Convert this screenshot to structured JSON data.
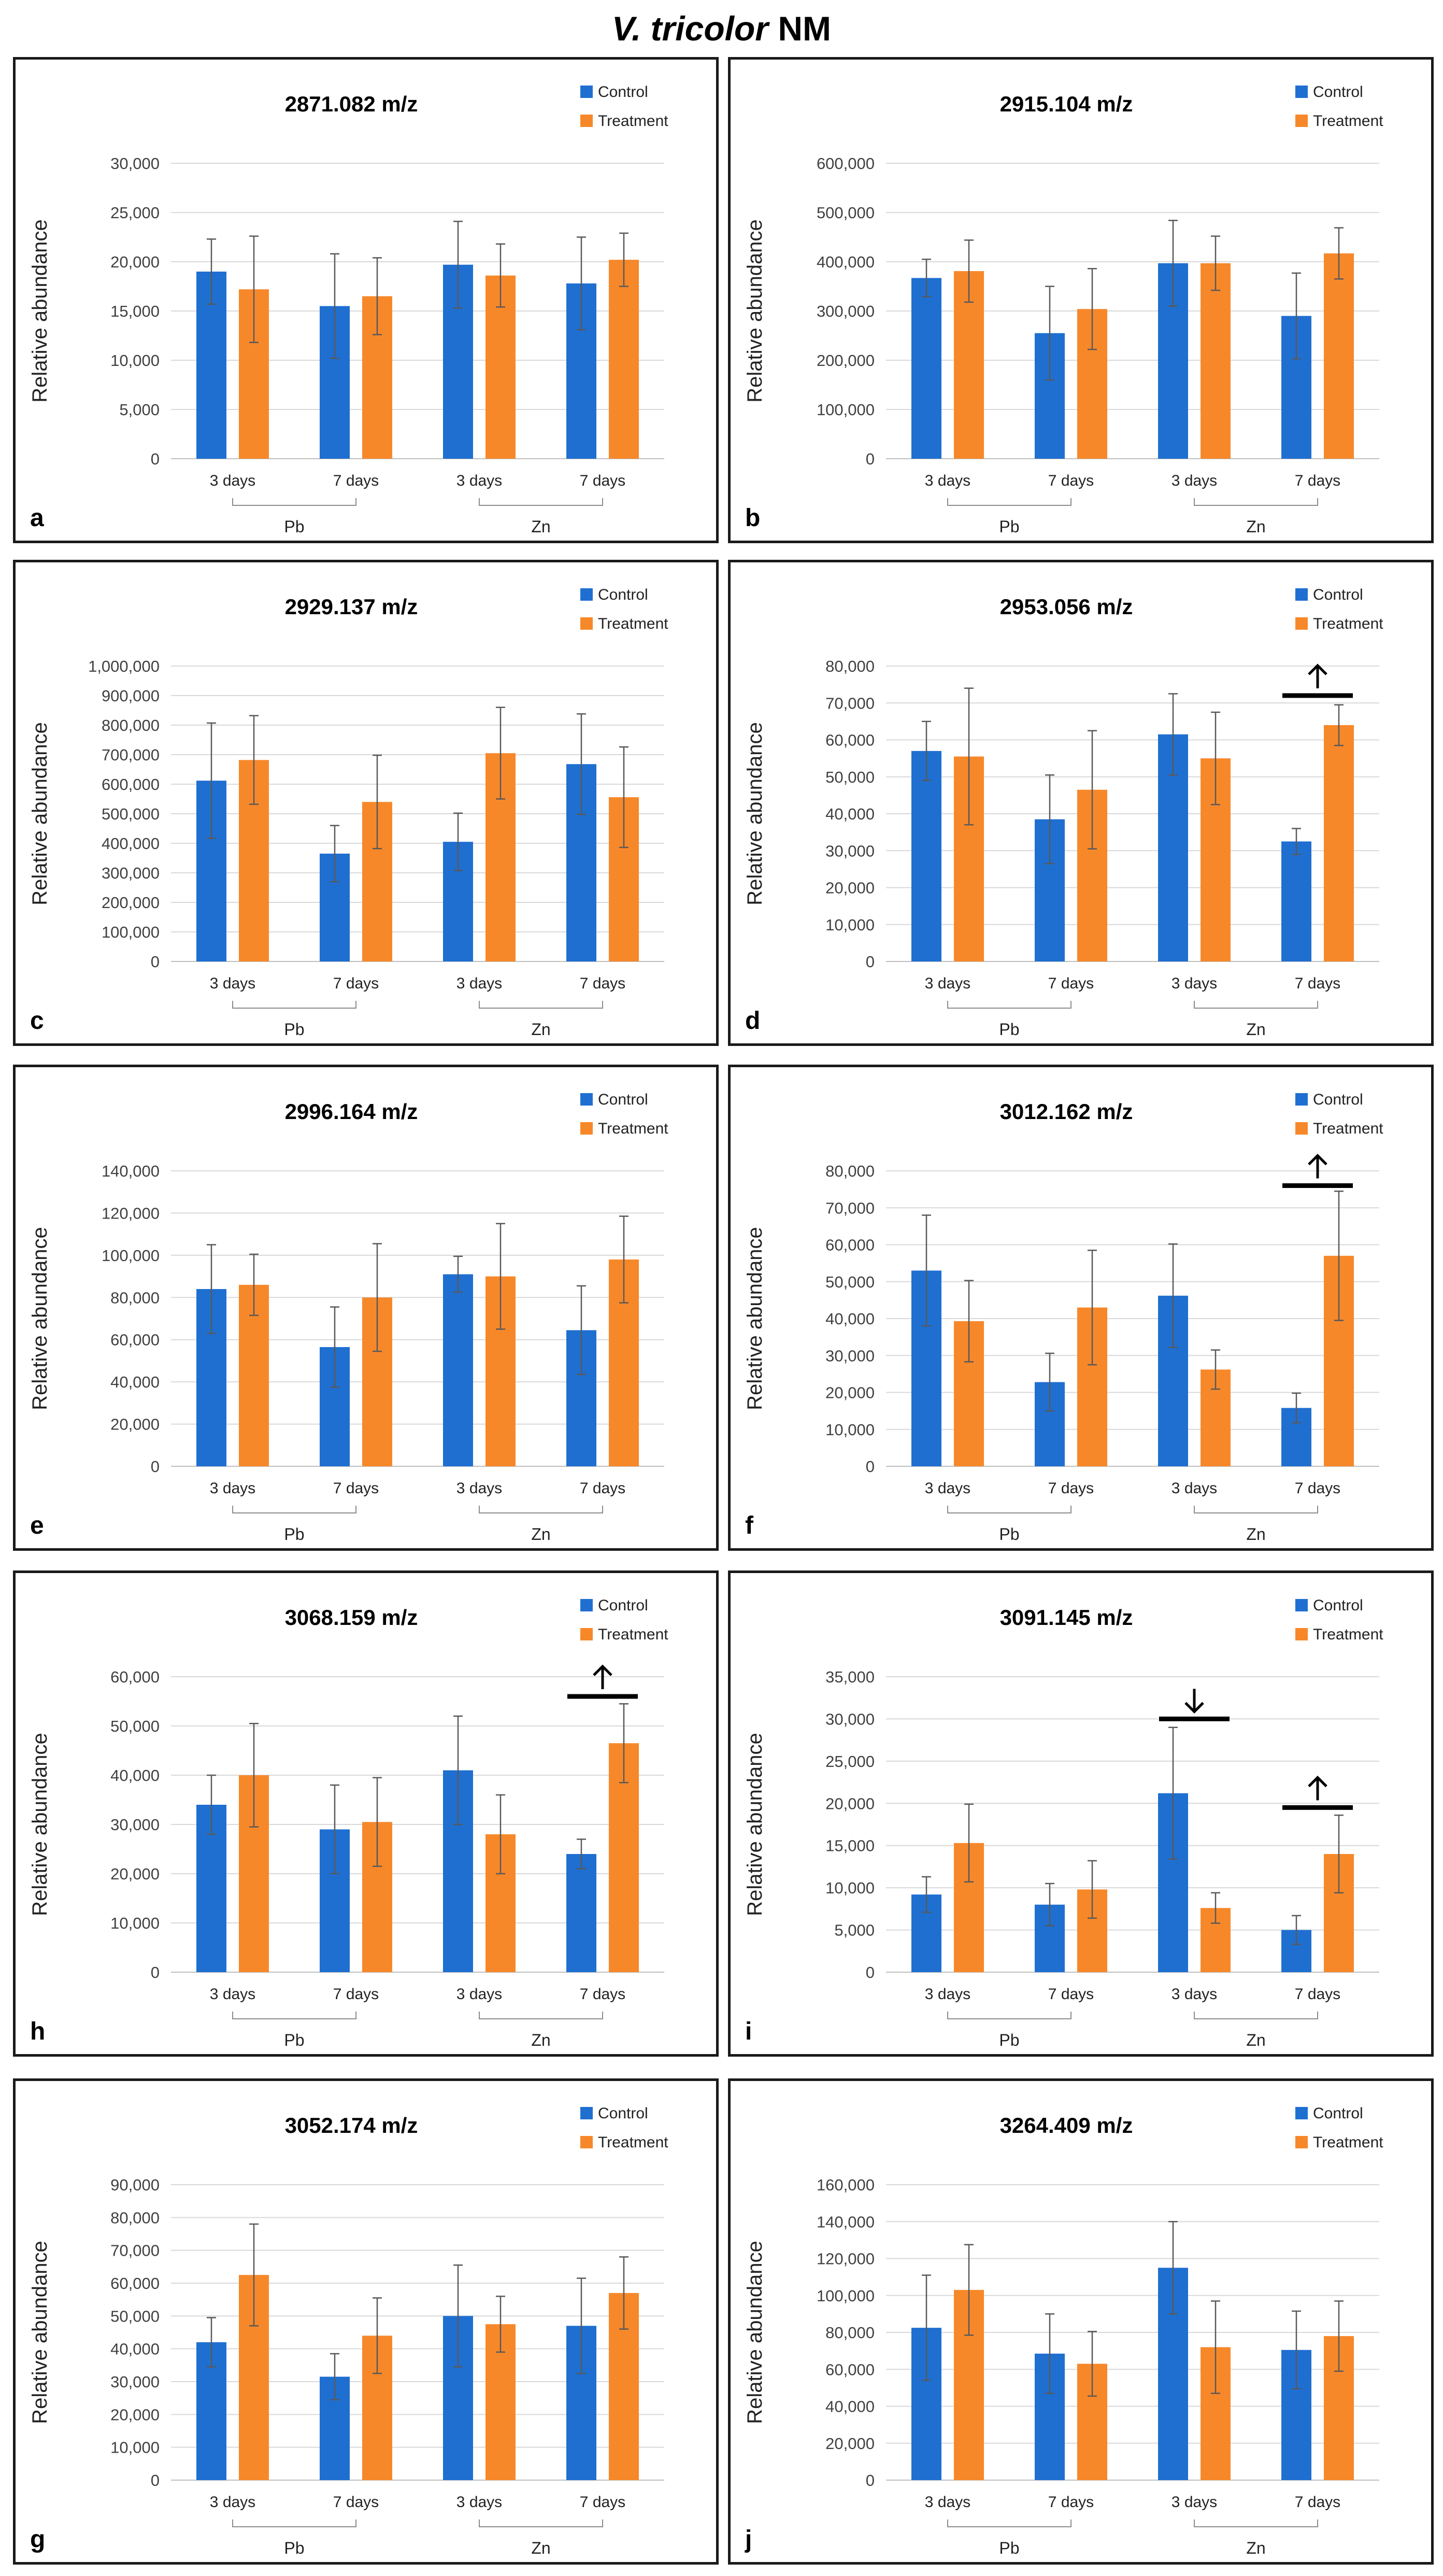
{
  "figure": {
    "title_species": "V. tricolor",
    "title_suffix": "NM"
  },
  "colors": {
    "control": "#1f6fd1",
    "treatment": "#f7882a",
    "grid": "#d9d9d9",
    "errorbar": "#595959"
  },
  "chart_data": [
    {
      "letter": "a",
      "type": "bar",
      "title": "2871.082 m/z",
      "ylabel": "Relative abundance",
      "ylim": [
        0,
        30000
      ],
      "yticks": [
        "0",
        "5,000",
        "10,000",
        "15,000",
        "20,000",
        "25,000",
        "30,000"
      ],
      "categories": [
        "3 days",
        "7 days",
        "3 days",
        "7 days"
      ],
      "groups": [
        "Pb",
        "Zn"
      ],
      "legend": [
        "Control",
        "Treatment"
      ],
      "markers": [],
      "series": [
        {
          "name": "Control",
          "values": [
            19000,
            15500,
            19700,
            17800
          ],
          "errors": [
            3300,
            5300,
            4400,
            4700
          ]
        },
        {
          "name": "Treatment",
          "values": [
            17200,
            16500,
            18600,
            20200
          ],
          "errors": [
            5400,
            3900,
            3200,
            2700
          ]
        }
      ]
    },
    {
      "letter": "b",
      "type": "bar",
      "title": "2915.104 m/z",
      "ylabel": "Relative abundance",
      "ylim": [
        0,
        600000
      ],
      "yticks": [
        "0",
        "100,000",
        "200,000",
        "300,000",
        "400,000",
        "500,000",
        "600,000"
      ],
      "categories": [
        "3 days",
        "7 days",
        "3 days",
        "7 days"
      ],
      "groups": [
        "Pb",
        "Zn"
      ],
      "legend": [
        "Control",
        "Treatment"
      ],
      "markers": [],
      "series": [
        {
          "name": "Control",
          "values": [
            367000,
            255000,
            397000,
            290000
          ],
          "errors": [
            38000,
            95000,
            87000,
            87000
          ]
        },
        {
          "name": "Treatment",
          "values": [
            381000,
            304000,
            397000,
            417000
          ],
          "errors": [
            63000,
            82000,
            55000,
            52000
          ]
        }
      ]
    },
    {
      "letter": "c",
      "type": "bar",
      "title": "2929.137 m/z",
      "ylabel": "Relative abundance",
      "ylim": [
        0,
        1000000
      ],
      "yticks": [
        "0",
        "100,000",
        "200,000",
        "300,000",
        "400,000",
        "500,000",
        "600,000",
        "700,000",
        "800,000",
        "900,000",
        "1,000,000"
      ],
      "categories": [
        "3 days",
        "7 days",
        "3 days",
        "7 days"
      ],
      "groups": [
        "Pb",
        "Zn"
      ],
      "legend": [
        "Control",
        "Treatment"
      ],
      "markers": [],
      "series": [
        {
          "name": "Control",
          "values": [
            612000,
            365000,
            405000,
            668000
          ],
          "errors": [
            195000,
            95000,
            97000,
            170000
          ]
        },
        {
          "name": "Treatment",
          "values": [
            682000,
            540000,
            705000,
            556000
          ],
          "errors": [
            150000,
            158000,
            155000,
            170000
          ]
        }
      ]
    },
    {
      "letter": "d",
      "type": "bar",
      "title": "2953.056 m/z",
      "ylabel": "Relative abundance",
      "ylim": [
        0,
        80000
      ],
      "yticks": [
        "0",
        "10,000",
        "20,000",
        "30,000",
        "40,000",
        "50,000",
        "60,000",
        "70,000",
        "80,000"
      ],
      "categories": [
        "3 days",
        "7 days",
        "3 days",
        "7 days"
      ],
      "groups": [
        "Pb",
        "Zn"
      ],
      "legend": [
        "Control",
        "Treatment"
      ],
      "markers": [
        {
          "category": 3,
          "direction": "up",
          "level": 72000
        }
      ],
      "series": [
        {
          "name": "Control",
          "values": [
            57000,
            38500,
            61500,
            32500
          ],
          "errors": [
            8000,
            12000,
            11000,
            3500
          ]
        },
        {
          "name": "Treatment",
          "values": [
            55500,
            46500,
            55000,
            64000
          ],
          "errors": [
            18500,
            16000,
            12500,
            5500
          ]
        }
      ]
    },
    {
      "letter": "e",
      "type": "bar",
      "title": "2996.164 m/z",
      "ylabel": "Relative abundance",
      "ylim": [
        0,
        140000
      ],
      "yticks": [
        "0",
        "20,000",
        "40,000",
        "60,000",
        "80,000",
        "100,000",
        "120,000",
        "140,000"
      ],
      "categories": [
        "3 days",
        "7 days",
        "3 days",
        "7 days"
      ],
      "groups": [
        "Pb",
        "Zn"
      ],
      "legend": [
        "Control",
        "Treatment"
      ],
      "markers": [],
      "series": [
        {
          "name": "Control",
          "values": [
            84000,
            56500,
            91000,
            64500
          ],
          "errors": [
            21000,
            19000,
            8500,
            21000
          ]
        },
        {
          "name": "Treatment",
          "values": [
            86000,
            80000,
            90000,
            98000
          ],
          "errors": [
            14500,
            25500,
            25000,
            20500
          ]
        }
      ]
    },
    {
      "letter": "f",
      "type": "bar",
      "title": "3012.162 m/z",
      "ylabel": "Relative abundance",
      "ylim": [
        0,
        80000
      ],
      "yticks": [
        "0",
        "10,000",
        "20,000",
        "30,000",
        "40,000",
        "50,000",
        "60,000",
        "70,000",
        "80,000"
      ],
      "categories": [
        "3 days",
        "7 days",
        "3 days",
        "7 days"
      ],
      "groups": [
        "Pb",
        "Zn"
      ],
      "legend": [
        "Control",
        "Treatment"
      ],
      "markers": [
        {
          "category": 3,
          "direction": "up",
          "level": 76000
        }
      ],
      "series": [
        {
          "name": "Control",
          "values": [
            53000,
            22800,
            46200,
            15800
          ],
          "errors": [
            15000,
            7800,
            14000,
            4000
          ]
        },
        {
          "name": "Treatment",
          "values": [
            39300,
            43000,
            26200,
            57000
          ],
          "errors": [
            11000,
            15500,
            5300,
            17500
          ]
        }
      ]
    },
    {
      "letter": "h",
      "type": "bar",
      "title": "3068.159 m/z",
      "ylabel": "Relative abundance",
      "ylim": [
        0,
        60000
      ],
      "yticks": [
        "0",
        "10,000",
        "20,000",
        "30,000",
        "40,000",
        "50,000",
        "60,000"
      ],
      "categories": [
        "3 days",
        "7 days",
        "3 days",
        "7 days"
      ],
      "groups": [
        "Pb",
        "Zn"
      ],
      "legend": [
        "Control",
        "Treatment"
      ],
      "markers": [
        {
          "category": 3,
          "direction": "up",
          "level": 56000
        }
      ],
      "series": [
        {
          "name": "Control",
          "values": [
            34000,
            29000,
            41000,
            24000
          ],
          "errors": [
            6000,
            9000,
            11000,
            3000
          ]
        },
        {
          "name": "Treatment",
          "values": [
            40000,
            30500,
            28000,
            46500
          ],
          "errors": [
            10500,
            9000,
            8000,
            8000
          ]
        }
      ]
    },
    {
      "letter": "i",
      "type": "bar",
      "title": "3091.145 m/z",
      "ylabel": "Relative abundance",
      "ylim": [
        0,
        35000
      ],
      "yticks": [
        "0",
        "5,000",
        "10,000",
        "15,000",
        "20,000",
        "25,000",
        "30,000",
        "35,000"
      ],
      "categories": [
        "3 days",
        "7 days",
        "3 days",
        "7 days"
      ],
      "groups": [
        "Pb",
        "Zn"
      ],
      "legend": [
        "Control",
        "Treatment"
      ],
      "markers": [
        {
          "category": 2,
          "direction": "down",
          "level": 30000
        },
        {
          "category": 3,
          "direction": "up",
          "level": 19500
        }
      ],
      "series": [
        {
          "name": "Control",
          "values": [
            9200,
            8000,
            21200,
            5000
          ],
          "errors": [
            2100,
            2500,
            7800,
            1700
          ]
        },
        {
          "name": "Treatment",
          "values": [
            15300,
            9800,
            7600,
            14000
          ],
          "errors": [
            4600,
            3400,
            1800,
            4600
          ]
        }
      ]
    },
    {
      "letter": "g",
      "type": "bar",
      "title": "3052.174 m/z",
      "ylabel": "Relative abundance",
      "ylim": [
        0,
        90000
      ],
      "yticks": [
        "0",
        "10,000",
        "20,000",
        "30,000",
        "40,000",
        "50,000",
        "60,000",
        "70,000",
        "80,000",
        "90,000"
      ],
      "categories": [
        "3 days",
        "7 days",
        "3 days",
        "7 days"
      ],
      "groups": [
        "Pb",
        "Zn"
      ],
      "legend": [
        "Control",
        "Treatment"
      ],
      "markers": [],
      "series": [
        {
          "name": "Control",
          "values": [
            42000,
            31500,
            50000,
            47000
          ],
          "errors": [
            7500,
            7000,
            15500,
            14500
          ]
        },
        {
          "name": "Treatment",
          "values": [
            62500,
            44000,
            47500,
            57000
          ],
          "errors": [
            15500,
            11500,
            8500,
            11000
          ]
        }
      ]
    },
    {
      "letter": "j",
      "type": "bar",
      "title": "3264.409 m/z",
      "ylabel": "Relative abundance",
      "ylim": [
        0,
        160000
      ],
      "yticks": [
        "0",
        "20,000",
        "40,000",
        "60,000",
        "80,000",
        "100,000",
        "120,000",
        "140,000",
        "160,000"
      ],
      "categories": [
        "3 days",
        "7 days",
        "3 days",
        "7 days"
      ],
      "groups": [
        "Pb",
        "Zn"
      ],
      "legend": [
        "Control",
        "Treatment"
      ],
      "markers": [],
      "series": [
        {
          "name": "Control",
          "values": [
            82500,
            68500,
            115000,
            70500
          ],
          "errors": [
            28500,
            21500,
            25000,
            21000
          ]
        },
        {
          "name": "Treatment",
          "values": [
            103000,
            63000,
            72000,
            78000
          ],
          "errors": [
            24500,
            17500,
            25000,
            19000
          ]
        }
      ]
    }
  ]
}
